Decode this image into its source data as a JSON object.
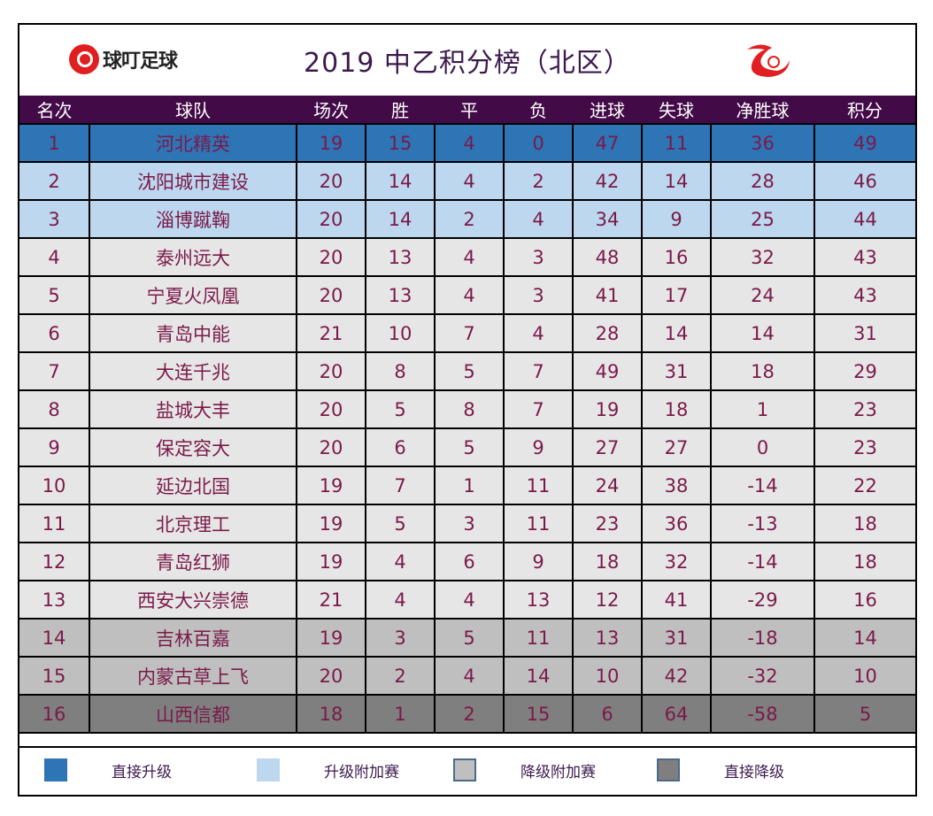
{
  "title": "2019 中乙积分榜（北区）",
  "logo_left_text": "球叮足球",
  "columns": [
    "名次",
    "球队",
    "场次",
    "胜",
    "平",
    "负",
    "进球",
    "失球",
    "净胜球",
    "积分"
  ],
  "rows": [
    {
      "tier": 1,
      "cells": [
        "1",
        "河北精英",
        "19",
        "15",
        "4",
        "0",
        "47",
        "11",
        "36",
        "49"
      ]
    },
    {
      "tier": 2,
      "cells": [
        "2",
        "沈阳城市建设",
        "20",
        "14",
        "4",
        "2",
        "42",
        "14",
        "28",
        "46"
      ]
    },
    {
      "tier": 2,
      "cells": [
        "3",
        "淄博蹴鞠",
        "20",
        "14",
        "2",
        "4",
        "34",
        "9",
        "25",
        "44"
      ]
    },
    {
      "tier": 3,
      "cells": [
        "4",
        "泰州远大",
        "20",
        "13",
        "4",
        "3",
        "48",
        "16",
        "32",
        "43"
      ]
    },
    {
      "tier": 3,
      "cells": [
        "5",
        "宁夏火凤凰",
        "20",
        "13",
        "4",
        "3",
        "41",
        "17",
        "24",
        "43"
      ]
    },
    {
      "tier": 3,
      "cells": [
        "6",
        "青岛中能",
        "21",
        "10",
        "7",
        "4",
        "28",
        "14",
        "14",
        "31"
      ]
    },
    {
      "tier": 3,
      "cells": [
        "7",
        "大连千兆",
        "20",
        "8",
        "5",
        "7",
        "49",
        "31",
        "18",
        "29"
      ]
    },
    {
      "tier": 3,
      "cells": [
        "8",
        "盐城大丰",
        "20",
        "5",
        "8",
        "7",
        "19",
        "18",
        "1",
        "23"
      ]
    },
    {
      "tier": 3,
      "cells": [
        "9",
        "保定容大",
        "20",
        "6",
        "5",
        "9",
        "27",
        "27",
        "0",
        "23"
      ]
    },
    {
      "tier": 3,
      "cells": [
        "10",
        "延边北国",
        "19",
        "7",
        "1",
        "11",
        "24",
        "38",
        "-14",
        "22"
      ]
    },
    {
      "tier": 3,
      "cells": [
        "11",
        "北京理工",
        "19",
        "5",
        "3",
        "11",
        "23",
        "36",
        "-13",
        "18"
      ]
    },
    {
      "tier": 3,
      "cells": [
        "12",
        "青岛红狮",
        "19",
        "4",
        "6",
        "9",
        "18",
        "32",
        "-14",
        "18"
      ]
    },
    {
      "tier": 3,
      "cells": [
        "13",
        "西安大兴崇德",
        "21",
        "4",
        "4",
        "13",
        "12",
        "41",
        "-29",
        "16"
      ]
    },
    {
      "tier": 4,
      "cells": [
        "14",
        "吉林百嘉",
        "19",
        "3",
        "5",
        "11",
        "13",
        "31",
        "-18",
        "14"
      ]
    },
    {
      "tier": 4,
      "cells": [
        "15",
        "内蒙古草上飞",
        "20",
        "2",
        "4",
        "14",
        "10",
        "42",
        "-32",
        "10"
      ]
    },
    {
      "tier": 5,
      "cells": [
        "16",
        "山西信都",
        "18",
        "1",
        "2",
        "15",
        "6",
        "64",
        "-58",
        "5"
      ]
    }
  ],
  "legend": [
    {
      "label": "直接升级",
      "color": "#2e75b6"
    },
    {
      "label": "升级附加赛",
      "color": "#bdd7ee"
    },
    {
      "label": "降级附加赛",
      "color": "#bfbfbf"
    },
    {
      "label": "直接降级",
      "color": "#7f7f7f"
    }
  ],
  "colors": {
    "header": "#430a48",
    "text": "#7a1a4a",
    "logo_red": "#e02020"
  }
}
